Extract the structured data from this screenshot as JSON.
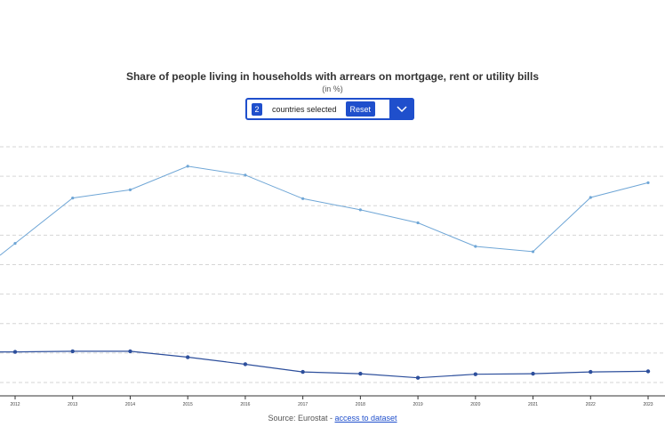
{
  "chart_data": {
    "type": "line",
    "title": "Share of people living in households with arrears on mortgage, rent or utility bills",
    "subtitle": "(in %)",
    "x": [
      "2012",
      "2013",
      "2014",
      "2015",
      "2016",
      "2017",
      "2018",
      "2019",
      "2020",
      "2021",
      "2022",
      "2023"
    ],
    "series": [
      {
        "values": [
          47.2,
          62.6,
          65.4,
          73.4,
          70.4,
          62.4,
          58.6,
          54.2,
          46.2,
          44.4,
          62.8,
          67.8
        ]
      },
      {
        "values": [
          10.4,
          10.6,
          10.6,
          8.6,
          6.2,
          3.6,
          3.0,
          1.6,
          2.8,
          3.0,
          3.6,
          3.8
        ]
      }
    ],
    "ylim": [
      0,
      80
    ],
    "grid": true
  },
  "selector": {
    "count": "2",
    "label": "countries selected",
    "reset_label": "Reset"
  },
  "source": {
    "prefix": "Source: Eurostat - ",
    "link_text": "access to dataset"
  },
  "colors": {
    "accent": "#1f4fcc",
    "series1": "#6fa6d6",
    "series2": "#2d4f9c",
    "grid": "#d6d6d6"
  },
  "icons": {
    "dropdown": "chevron-down-icon"
  }
}
